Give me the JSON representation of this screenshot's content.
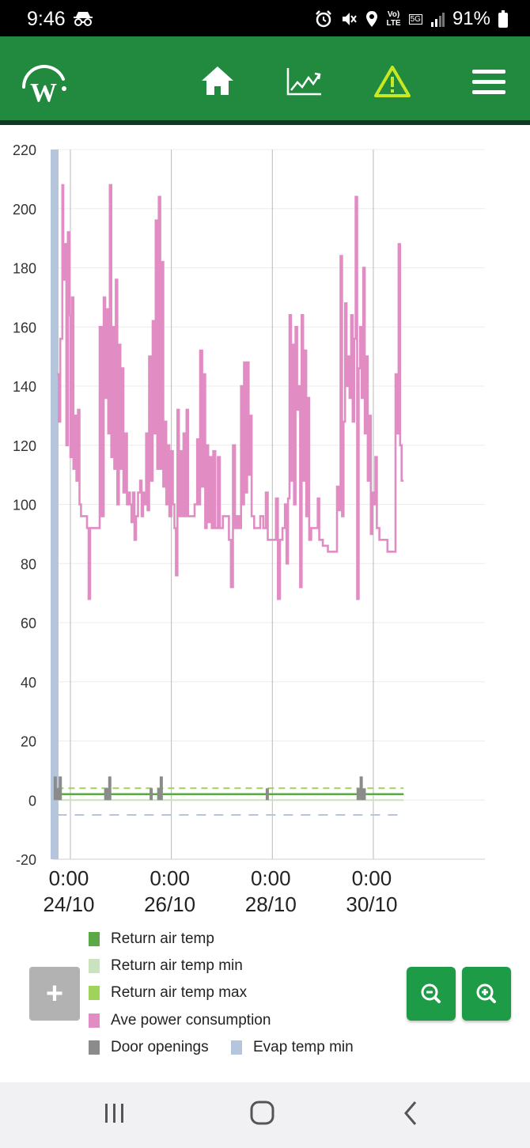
{
  "status_bar": {
    "time": "9:46",
    "battery": "91%",
    "network_top": "Vo)",
    "network_bottom": "LTE",
    "network_5g": "5G"
  },
  "app_bar": {
    "logo_letter": "W",
    "icons": [
      "home-icon",
      "chart-icon",
      "warning-icon",
      "menu-icon"
    ],
    "brand_color": "#228a3e",
    "warning_color": "#c7e823"
  },
  "chart_data": {
    "type": "line",
    "ylim": [
      -20,
      220
    ],
    "y_ticks": [
      -20,
      0,
      20,
      40,
      60,
      80,
      100,
      120,
      140,
      160,
      180,
      200,
      220
    ],
    "x_range_days": [
      22.64,
      31.21
    ],
    "x_ticks": [
      {
        "day": 23,
        "time": "0:00",
        "date": "24/10"
      },
      {
        "day": 25,
        "time": "0:00",
        "date": "26/10"
      },
      {
        "day": 27,
        "time": "0:00",
        "date": "28/10"
      },
      {
        "day": 29,
        "time": "0:00",
        "date": "30/10"
      }
    ],
    "grid": true,
    "series": [
      {
        "name": "Ave power consumption",
        "color": "#e28cc4",
        "style": "step",
        "points": [
          [
            22.74,
            144
          ],
          [
            22.77,
            128
          ],
          [
            22.8,
            156
          ],
          [
            22.84,
            208
          ],
          [
            22.86,
            176
          ],
          [
            22.89,
            188
          ],
          [
            22.92,
            120
          ],
          [
            22.95,
            192
          ],
          [
            22.98,
            164
          ],
          [
            23.0,
            116
          ],
          [
            23.03,
            170
          ],
          [
            23.06,
            112
          ],
          [
            23.09,
            130
          ],
          [
            23.12,
            108
          ],
          [
            23.15,
            132
          ],
          [
            23.18,
            100
          ],
          [
            23.21,
            96
          ],
          [
            23.27,
            96
          ],
          [
            23.33,
            92
          ],
          [
            23.36,
            68
          ],
          [
            23.39,
            92
          ],
          [
            23.47,
            92
          ],
          [
            23.55,
            92
          ],
          [
            23.58,
            160
          ],
          [
            23.62,
            96
          ],
          [
            23.66,
            170
          ],
          [
            23.69,
            136
          ],
          [
            23.72,
            166
          ],
          [
            23.75,
            124
          ],
          [
            23.78,
            208
          ],
          [
            23.81,
            116
          ],
          [
            23.84,
            160
          ],
          [
            23.87,
            112
          ],
          [
            23.9,
            176
          ],
          [
            23.93,
            100
          ],
          [
            23.96,
            154
          ],
          [
            23.99,
            112
          ],
          [
            24.02,
            146
          ],
          [
            24.05,
            104
          ],
          [
            24.08,
            124
          ],
          [
            24.12,
            100
          ],
          [
            24.15,
            104
          ],
          [
            24.18,
            100
          ],
          [
            24.21,
            94
          ],
          [
            24.24,
            104
          ],
          [
            24.27,
            88
          ],
          [
            24.3,
            96
          ],
          [
            24.34,
            104
          ],
          [
            24.38,
            108
          ],
          [
            24.41,
            96
          ],
          [
            24.44,
            104
          ],
          [
            24.47,
            100
          ],
          [
            24.5,
            124
          ],
          [
            24.53,
            98
          ],
          [
            24.56,
            150
          ],
          [
            24.6,
            108
          ],
          [
            24.63,
            162
          ],
          [
            24.66,
            124
          ],
          [
            24.69,
            196
          ],
          [
            24.72,
            112
          ],
          [
            24.75,
            204
          ],
          [
            24.78,
            112
          ],
          [
            24.81,
            182
          ],
          [
            24.84,
            106
          ],
          [
            24.87,
            128
          ],
          [
            24.9,
            100
          ],
          [
            24.93,
            120
          ],
          [
            24.96,
            96
          ],
          [
            25.0,
            118
          ],
          [
            25.03,
            100
          ],
          [
            25.06,
            92
          ],
          [
            25.09,
            76
          ],
          [
            25.12,
            132
          ],
          [
            25.15,
            96
          ],
          [
            25.18,
            118
          ],
          [
            25.21,
            96
          ],
          [
            25.24,
            124
          ],
          [
            25.27,
            96
          ],
          [
            25.3,
            132
          ],
          [
            25.33,
            96
          ],
          [
            25.4,
            96
          ],
          [
            25.46,
            100
          ],
          [
            25.51,
            122
          ],
          [
            25.54,
            100
          ],
          [
            25.57,
            152
          ],
          [
            25.61,
            106
          ],
          [
            25.64,
            144
          ],
          [
            25.67,
            92
          ],
          [
            25.7,
            120
          ],
          [
            25.73,
            94
          ],
          [
            25.76,
            116
          ],
          [
            25.8,
            92
          ],
          [
            25.83,
            118
          ],
          [
            25.87,
            92
          ],
          [
            25.92,
            116
          ],
          [
            25.96,
            92
          ],
          [
            26.02,
            96
          ],
          [
            26.08,
            96
          ],
          [
            26.14,
            88
          ],
          [
            26.18,
            72
          ],
          [
            26.22,
            120
          ],
          [
            26.26,
            92
          ],
          [
            26.3,
            96
          ],
          [
            26.34,
            92
          ],
          [
            26.38,
            140
          ],
          [
            26.41,
            100
          ],
          [
            26.44,
            148
          ],
          [
            26.47,
            104
          ],
          [
            26.5,
            148
          ],
          [
            26.53,
            110
          ],
          [
            26.56,
            130
          ],
          [
            26.59,
            96
          ],
          [
            26.64,
            92
          ],
          [
            26.7,
            92
          ],
          [
            26.76,
            96
          ],
          [
            26.82,
            92
          ],
          [
            26.87,
            104
          ],
          [
            26.91,
            88
          ],
          [
            27.0,
            88
          ],
          [
            27.07,
            102
          ],
          [
            27.11,
            68
          ],
          [
            27.15,
            88
          ],
          [
            27.2,
            92
          ],
          [
            27.25,
            100
          ],
          [
            27.28,
            80
          ],
          [
            27.31,
            102
          ],
          [
            27.34,
            164
          ],
          [
            27.37,
            108
          ],
          [
            27.4,
            154
          ],
          [
            27.43,
            100
          ],
          [
            27.46,
            160
          ],
          [
            27.49,
            132
          ],
          [
            27.52,
            140
          ],
          [
            27.55,
            72
          ],
          [
            27.58,
            164
          ],
          [
            27.61,
            108
          ],
          [
            27.64,
            152
          ],
          [
            27.67,
            96
          ],
          [
            27.7,
            136
          ],
          [
            27.73,
            88
          ],
          [
            27.77,
            92
          ],
          [
            27.84,
            92
          ],
          [
            27.9,
            102
          ],
          [
            27.93,
            88
          ],
          [
            28.0,
            86
          ],
          [
            28.1,
            84
          ],
          [
            28.2,
            84
          ],
          [
            28.28,
            106
          ],
          [
            28.32,
            98
          ],
          [
            28.35,
            184
          ],
          [
            28.38,
            96
          ],
          [
            28.41,
            128
          ],
          [
            28.44,
            168
          ],
          [
            28.47,
            140
          ],
          [
            28.5,
            150
          ],
          [
            28.53,
            136
          ],
          [
            28.56,
            164
          ],
          [
            28.59,
            128
          ],
          [
            28.62,
            156
          ],
          [
            28.65,
            204
          ],
          [
            28.68,
            68
          ],
          [
            28.71,
            146
          ],
          [
            28.74,
            160
          ],
          [
            28.77,
            136
          ],
          [
            28.8,
            180
          ],
          [
            28.83,
            124
          ],
          [
            28.86,
            150
          ],
          [
            28.89,
            108
          ],
          [
            28.92,
            130
          ],
          [
            28.95,
            90
          ],
          [
            28.98,
            104
          ],
          [
            29.01,
            100
          ],
          [
            29.04,
            116
          ],
          [
            29.07,
            92
          ],
          [
            29.12,
            88
          ],
          [
            29.2,
            88
          ],
          [
            29.28,
            84
          ],
          [
            29.36,
            84
          ],
          [
            29.44,
            144
          ],
          [
            29.47,
            124
          ],
          [
            29.5,
            188
          ],
          [
            29.53,
            120
          ],
          [
            29.56,
            108
          ],
          [
            29.6,
            108
          ]
        ]
      },
      {
        "name": "Return air temp",
        "color": "#5ba847",
        "approx_value": 2
      },
      {
        "name": "Return air temp min",
        "color": "#c9e3be",
        "approx_value": 0
      },
      {
        "name": "Return air temp max",
        "color": "#9fd35b",
        "approx_value": 4
      },
      {
        "name": "Door openings",
        "color": "#8b8b8b"
      },
      {
        "name": "Evap temp min",
        "color": "#b4c5dc",
        "approx_value": -5
      }
    ],
    "legend_placement": "bottom"
  },
  "controls": {
    "add_symbol": "+",
    "zoom_out_icon": "zoom-out-icon",
    "zoom_in_icon": "zoom-in-icon"
  },
  "nav_bar": {
    "icons": [
      "recent-apps-icon",
      "home-circle-icon",
      "back-icon"
    ]
  }
}
